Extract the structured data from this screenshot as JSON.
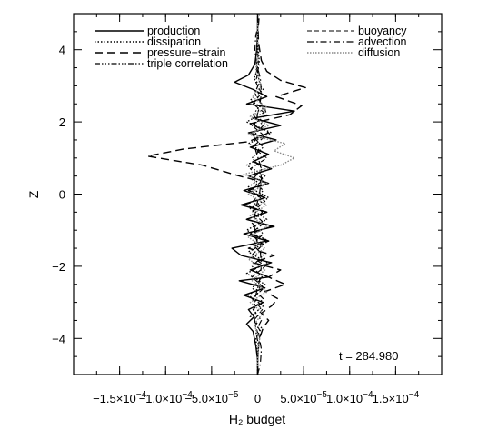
{
  "chart_data": {
    "type": "line",
    "title": "",
    "xlabel": "H₂ budget",
    "ylabel": "Z",
    "xlim": [
      -0.0002,
      0.0002
    ],
    "ylim": [
      -5,
      5
    ],
    "x_ticks": [
      {
        "value": -0.00015,
        "mantissa": "−1.5×10",
        "exp": "−4"
      },
      {
        "value": -0.0001,
        "mantissa": "−1.0×10",
        "exp": "−4"
      },
      {
        "value": -5e-05,
        "mantissa": "−5.0×10",
        "exp": "−5"
      },
      {
        "value": 0,
        "mantissa": "0",
        "exp": ""
      },
      {
        "value": 5e-05,
        "mantissa": "5.0×10",
        "exp": "−5"
      },
      {
        "value": 0.0001,
        "mantissa": "1.0×10",
        "exp": "−4"
      },
      {
        "value": 0.00015,
        "mantissa": "1.5×10",
        "exp": "−4"
      }
    ],
    "y_ticks": [
      {
        "value": -4,
        "label": "−4"
      },
      {
        "value": -2,
        "label": "−2"
      },
      {
        "value": 0,
        "label": "0"
      },
      {
        "value": 2,
        "label": "2"
      },
      {
        "value": 4,
        "label": "4"
      }
    ],
    "annotation": "t = 284.980",
    "legend_left": [
      "production",
      "dissipation",
      "pressure−strain",
      "triple correlation"
    ],
    "legend_right": [
      "buoyancy",
      "advection",
      "diffusion"
    ],
    "series": [
      {
        "name": "production",
        "dash": "",
        "color": "#000000",
        "width": 1.4,
        "points": [
          [
            0,
            -5
          ],
          [
            0,
            -4.6
          ],
          [
            -2e-06,
            -4.2
          ],
          [
            -5e-06,
            -3.8
          ],
          [
            -1.2e-05,
            -3.6
          ],
          [
            -4e-06,
            -3.4
          ],
          [
            -1e-05,
            -3.2
          ],
          [
            6e-06,
            -3.0
          ],
          [
            -1.5e-05,
            -2.8
          ],
          [
            8e-06,
            -2.6
          ],
          [
            -2e-05,
            -2.4
          ],
          [
            1.2e-05,
            -2.3
          ],
          [
            -8e-06,
            -2.1
          ],
          [
            1.5e-05,
            -1.9
          ],
          [
            -1.8e-05,
            -1.7
          ],
          [
            -2.8e-05,
            -1.5
          ],
          [
            1e-05,
            -1.3
          ],
          [
            -1.5e-05,
            -1.1
          ],
          [
            1.8e-05,
            -0.9
          ],
          [
            -1.2e-05,
            -0.7
          ],
          [
            1e-05,
            -0.5
          ],
          [
            -1.8e-05,
            -0.3
          ],
          [
            8e-06,
            -0.1
          ],
          [
            -1.5e-05,
            0.1
          ],
          [
            1.2e-05,
            0.3
          ],
          [
            -1e-05,
            0.5
          ],
          [
            1.5e-05,
            0.7
          ],
          [
            -5e-06,
            0.9
          ],
          [
            1.2e-05,
            1.1
          ],
          [
            -8e-06,
            1.3
          ],
          [
            2e-05,
            1.5
          ],
          [
            -1e-05,
            1.7
          ],
          [
            2.5e-05,
            1.9
          ],
          [
            -5e-06,
            2.1
          ],
          [
            4e-05,
            2.3
          ],
          [
            -1.2e-05,
            2.5
          ],
          [
            1e-05,
            2.7
          ],
          [
            -5e-06,
            2.9
          ],
          [
            -2.5e-05,
            3.1
          ],
          [
            -1e-05,
            3.3
          ],
          [
            -3e-06,
            3.6
          ],
          [
            -1e-06,
            4.0
          ],
          [
            0,
            4.5
          ],
          [
            0,
            5
          ]
        ]
      },
      {
        "name": "dissipation",
        "dash": "1.5,2",
        "color": "#000000",
        "width": 1.4,
        "points": [
          [
            0,
            -5
          ],
          [
            0,
            -4.5
          ],
          [
            -2e-06,
            -4.0
          ],
          [
            4e-06,
            -3.7
          ],
          [
            -8e-06,
            -3.4
          ],
          [
            6e-06,
            -3.1
          ],
          [
            -1e-05,
            -2.8
          ],
          [
            8e-06,
            -2.5
          ],
          [
            -1.2e-05,
            -2.2
          ],
          [
            1e-05,
            -1.9
          ],
          [
            -1e-05,
            -1.6
          ],
          [
            1.2e-05,
            -1.3
          ],
          [
            -1.2e-05,
            -1.0
          ],
          [
            1e-05,
            -0.7
          ],
          [
            -8e-06,
            -0.4
          ],
          [
            1.2e-05,
            -0.1
          ],
          [
            -1e-05,
            0.2
          ],
          [
            8e-06,
            0.5
          ],
          [
            -1.2e-05,
            0.8
          ],
          [
            1e-05,
            1.1
          ],
          [
            -1e-05,
            1.4
          ],
          [
            1.5e-05,
            1.7
          ],
          [
            -1.2e-05,
            2.0
          ],
          [
            1e-05,
            2.3
          ],
          [
            -8e-06,
            2.6
          ],
          [
            6e-06,
            2.9
          ],
          [
            -4e-06,
            3.2
          ],
          [
            2e-06,
            3.6
          ],
          [
            0,
            4.2
          ],
          [
            0,
            5
          ]
        ]
      },
      {
        "name": "pressure−strain",
        "dash": "9,5",
        "color": "#000000",
        "width": 1.4,
        "points": [
          [
            0,
            -5
          ],
          [
            0,
            -4.5
          ],
          [
            2e-06,
            -4.0
          ],
          [
            6e-06,
            -3.7
          ],
          [
            1.2e-05,
            -3.5
          ],
          [
            4e-06,
            -3.3
          ],
          [
            1.5e-05,
            -3.1
          ],
          [
            2.2e-05,
            -2.9
          ],
          [
            8e-06,
            -2.7
          ],
          [
            3e-05,
            -2.5
          ],
          [
            1.2e-05,
            -2.3
          ],
          [
            2.5e-05,
            -2.1
          ],
          [
            -5e-06,
            -1.9
          ],
          [
            1.8e-05,
            -1.7
          ],
          [
            -1e-05,
            -1.5
          ],
          [
            1.2e-05,
            -1.3
          ],
          [
            -8e-06,
            -1.1
          ],
          [
            1.5e-05,
            -0.9
          ],
          [
            -1.2e-05,
            -0.7
          ],
          [
            1e-05,
            -0.5
          ],
          [
            -1.5e-05,
            -0.3
          ],
          [
            8e-06,
            -0.1
          ],
          [
            -1e-05,
            0.1
          ],
          [
            1.2e-05,
            0.3
          ],
          [
            -2e-05,
            0.5
          ],
          [
            -6e-05,
            0.8
          ],
          [
            -0.00012,
            1.05
          ],
          [
            -8e-05,
            1.25
          ],
          [
            -1e-05,
            1.45
          ],
          [
            1.2e-05,
            1.7
          ],
          [
            -8e-06,
            1.95
          ],
          [
            3.5e-05,
            2.2
          ],
          [
            4.8e-05,
            2.45
          ],
          [
            2e-05,
            2.7
          ],
          [
            5.2e-05,
            2.95
          ],
          [
            2.5e-05,
            3.15
          ],
          [
            1e-05,
            3.4
          ],
          [
            4e-06,
            3.7
          ],
          [
            1e-06,
            4.2
          ],
          [
            0,
            5
          ]
        ]
      },
      {
        "name": "triple correlation",
        "dash": "6,2,1.5,2,1.5,2,1.5,2",
        "color": "#000000",
        "width": 1.2,
        "points": [
          [
            0,
            -5
          ],
          [
            0,
            -4.6
          ],
          [
            1e-06,
            -4.2
          ],
          [
            -2e-06,
            -3.8
          ],
          [
            4e-06,
            -3.5
          ],
          [
            -5e-06,
            -3.2
          ],
          [
            6e-06,
            -2.9
          ],
          [
            -6e-06,
            -2.6
          ],
          [
            5e-06,
            -2.3
          ],
          [
            -6e-06,
            -2.0
          ],
          [
            6e-06,
            -1.7
          ],
          [
            -5e-06,
            -1.4
          ],
          [
            6e-06,
            -1.1
          ],
          [
            -6e-06,
            -0.8
          ],
          [
            5e-06,
            -0.5
          ],
          [
            -5e-06,
            -0.2
          ],
          [
            6e-06,
            0.1
          ],
          [
            -6e-06,
            0.4
          ],
          [
            5e-06,
            0.7
          ],
          [
            -6e-06,
            1.0
          ],
          [
            6e-06,
            1.3
          ],
          [
            -5e-06,
            1.6
          ],
          [
            6e-06,
            1.9
          ],
          [
            -5e-06,
            2.2
          ],
          [
            4e-06,
            2.5
          ],
          [
            -3e-06,
            2.8
          ],
          [
            2e-06,
            3.1
          ],
          [
            -1e-06,
            3.5
          ],
          [
            0,
            4.0
          ],
          [
            0,
            5
          ]
        ]
      },
      {
        "name": "buoyancy",
        "dash": "5,3",
        "color": "#000000",
        "width": 1.1,
        "points": [
          [
            0,
            -5
          ],
          [
            0,
            -4.6
          ],
          [
            1e-06,
            -4.2
          ],
          [
            3e-06,
            -3.8
          ],
          [
            -4e-06,
            -3.5
          ],
          [
            5e-06,
            -3.2
          ],
          [
            -6e-06,
            -2.9
          ],
          [
            7e-06,
            -2.6
          ],
          [
            -6e-06,
            -2.3
          ],
          [
            8e-06,
            -2.0
          ],
          [
            -7e-06,
            -1.7
          ],
          [
            6e-06,
            -1.4
          ],
          [
            -8e-06,
            -1.1
          ],
          [
            7e-06,
            -0.8
          ],
          [
            -6e-06,
            -0.5
          ],
          [
            8e-06,
            -0.2
          ],
          [
            -7e-06,
            0.1
          ],
          [
            6e-06,
            0.4
          ],
          [
            -8e-06,
            0.7
          ],
          [
            1e-05,
            1.0
          ],
          [
            -6e-06,
            1.3
          ],
          [
            8e-06,
            1.6
          ],
          [
            -6e-06,
            1.9
          ],
          [
            1e-05,
            2.2
          ],
          [
            -5e-06,
            2.5
          ],
          [
            4e-06,
            2.8
          ],
          [
            -2e-06,
            3.1
          ],
          [
            1e-06,
            3.5
          ],
          [
            0,
            4.0
          ],
          [
            0,
            5
          ]
        ]
      },
      {
        "name": "advection",
        "dash": "7,3,1.5,3",
        "color": "#000000",
        "width": 1.2,
        "points": [
          [
            0,
            -5
          ],
          [
            3e-06,
            -4.7
          ],
          [
            4e-06,
            -4.3
          ],
          [
            2e-06,
            -4.0
          ],
          [
            -3e-06,
            -3.6
          ],
          [
            -4e-06,
            -3.2
          ],
          [
            -2e-06,
            -2.8
          ],
          [
            2e-06,
            -2.4
          ],
          [
            4e-06,
            -2.0
          ],
          [
            3e-06,
            -1.6
          ],
          [
            -2e-06,
            -1.2
          ],
          [
            -4e-06,
            -0.8
          ],
          [
            -2e-06,
            -0.4
          ],
          [
            2e-06,
            0
          ],
          [
            4e-06,
            0.4
          ],
          [
            3e-06,
            0.8
          ],
          [
            -2e-06,
            1.2
          ],
          [
            -4e-06,
            1.6
          ],
          [
            -3e-06,
            2.0
          ],
          [
            2e-06,
            2.4
          ],
          [
            4e-06,
            2.8
          ],
          [
            3e-06,
            3.2
          ],
          [
            -1e-06,
            3.6
          ],
          [
            -3e-06,
            4.0
          ],
          [
            -2e-06,
            4.4
          ],
          [
            1e-06,
            4.7
          ],
          [
            2e-06,
            5
          ]
        ]
      },
      {
        "name": "diffusion",
        "dash": "1.5,1.5",
        "color": "#888888",
        "width": 1.4,
        "points": [
          [
            0,
            -5
          ],
          [
            0,
            -4.5
          ],
          [
            2e-06,
            -4.0
          ],
          [
            -4e-06,
            -3.6
          ],
          [
            6e-06,
            -3.3
          ],
          [
            -8e-06,
            -3.0
          ],
          [
            1e-05,
            -2.7
          ],
          [
            -6e-06,
            -2.4
          ],
          [
            8e-06,
            -2.1
          ],
          [
            -1e-05,
            -1.8
          ],
          [
            8e-06,
            -1.5
          ],
          [
            -1e-05,
            -1.2
          ],
          [
            1e-05,
            -0.9
          ],
          [
            -8e-06,
            -0.6
          ],
          [
            1e-05,
            -0.3
          ],
          [
            -1e-05,
            0
          ],
          [
            1e-05,
            0.3
          ],
          [
            -1.5e-05,
            0.55
          ],
          [
            2.5e-05,
            0.8
          ],
          [
            4e-05,
            1.0
          ],
          [
            1.8e-05,
            1.2
          ],
          [
            3e-05,
            1.4
          ],
          [
            -1e-05,
            1.65
          ],
          [
            1.2e-05,
            1.9
          ],
          [
            -8e-06,
            2.15
          ],
          [
            1e-05,
            2.4
          ],
          [
            -6e-06,
            2.7
          ],
          [
            4e-06,
            3.0
          ],
          [
            -2e-06,
            3.4
          ],
          [
            0,
            4.0
          ],
          [
            0,
            5
          ]
        ]
      }
    ]
  }
}
